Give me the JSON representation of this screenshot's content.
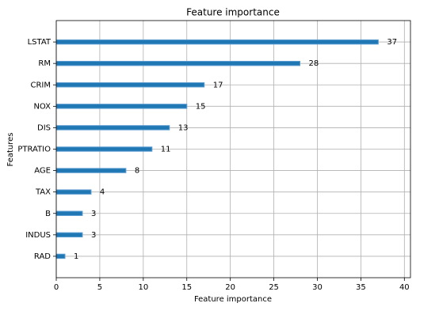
{
  "chart_data": {
    "type": "barh",
    "title": "Feature importance",
    "x_label": "Feature importance",
    "y_label": "Features",
    "categories": [
      "LSTAT",
      "RM",
      "CRIM",
      "NOX",
      "DIS",
      "PTRATIO",
      "AGE",
      "TAX",
      "B",
      "INDUS",
      "RAD"
    ],
    "values": [
      37,
      28,
      17,
      15,
      13,
      11,
      8,
      4,
      3,
      3,
      1
    ],
    "color": "#1f77b4",
    "xlim": [
      0,
      40.7
    ],
    "xticks": [
      0,
      5,
      10,
      15,
      20,
      25,
      30,
      35,
      40
    ],
    "grid": true
  }
}
